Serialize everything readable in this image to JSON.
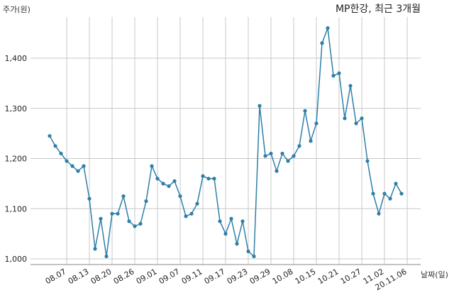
{
  "chart_data": {
    "type": "line",
    "title": "MP한강, 최근 3개월",
    "ylabel": "주가(원)",
    "xlabel": "날짜(일)",
    "ylim": [
      1000,
      1460
    ],
    "yticks": [
      1000,
      1100,
      1200,
      1300,
      1400
    ],
    "ytick_labels": [
      "1,000",
      "1,100",
      "1,200",
      "1,300",
      "1,400"
    ],
    "xtick_labels": [
      "08.07",
      "08.13",
      "08.20",
      "08.26",
      "09.01",
      "09.07",
      "09.11",
      "09.17",
      "09.23",
      "09.29",
      "10.08",
      "10.15",
      "10.21",
      "10.27",
      "11.02",
      "20.11.06"
    ],
    "xtick_positions": [
      3,
      7,
      11,
      15,
      19,
      23,
      27,
      31,
      35,
      39,
      43,
      47,
      51,
      55,
      59,
      63
    ],
    "grid": true,
    "line_color": "#2e7fa8",
    "series": [
      {
        "name": "",
        "values": [
          1245,
          1225,
          1210,
          1195,
          1185,
          1175,
          1185,
          1120,
          1020,
          1080,
          1005,
          1090,
          1090,
          1125,
          1075,
          1065,
          1070,
          1115,
          1185,
          1160,
          1150,
          1145,
          1155,
          1125,
          1085,
          1090,
          1110,
          1165,
          1160,
          1160,
          1075,
          1050,
          1080,
          1030,
          1075,
          1015,
          1005,
          1305,
          1205,
          1210,
          1175,
          1210,
          1195,
          1205,
          1225,
          1295,
          1235,
          1270,
          1430,
          1460,
          1365,
          1370,
          1280,
          1345,
          1270,
          1280,
          1195,
          1130,
          1090,
          1130,
          1120,
          1150,
          1130
        ]
      }
    ]
  }
}
